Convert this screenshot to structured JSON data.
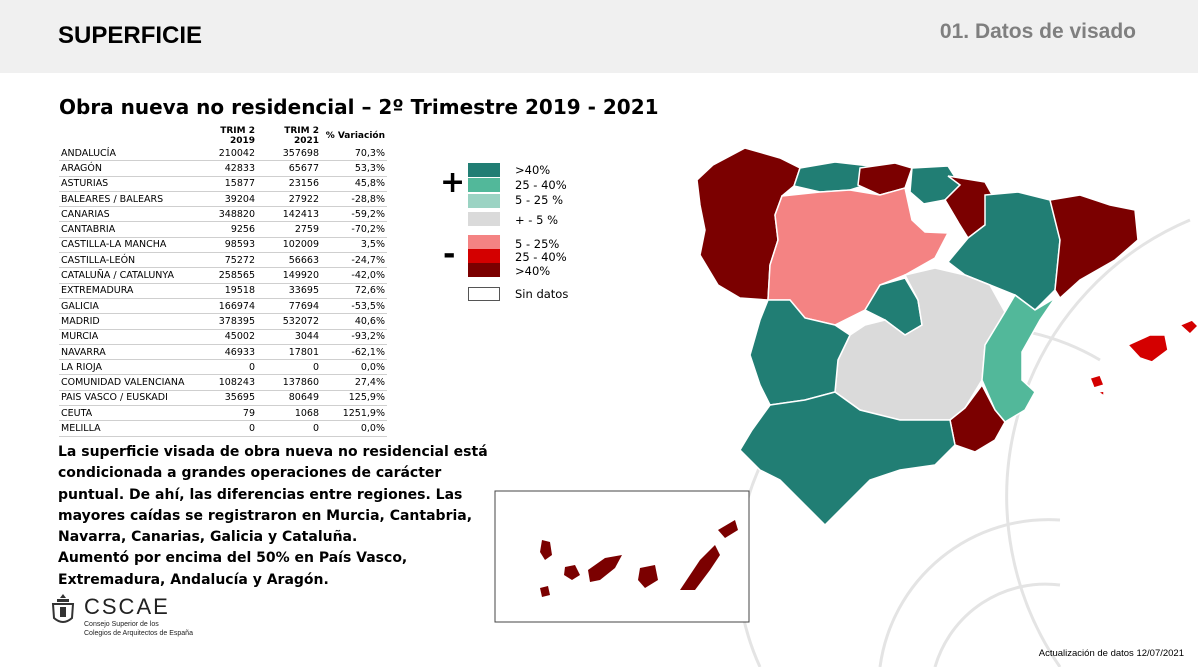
{
  "header": {
    "title": "SUPERFICIE",
    "section": "01. Datos de visado"
  },
  "chart_title": "Obra nueva no residencial – 2º Trimestre 2019 - 2021",
  "table": {
    "headers": [
      "",
      "TRIM 2 2019",
      "TRIM 2 2021",
      "% Variación"
    ],
    "rows": [
      [
        "ANDALUCÍA",
        "210042",
        "357698",
        "70,3%"
      ],
      [
        "ARAGÓN",
        "42833",
        "65677",
        "53,3%"
      ],
      [
        "ASTURIAS",
        "15877",
        "23156",
        "45,8%"
      ],
      [
        "BALEARES / BALEARS",
        "39204",
        "27922",
        "-28,8%"
      ],
      [
        "CANARIAS",
        "348820",
        "142413",
        "-59,2%"
      ],
      [
        "CANTABRIA",
        "9256",
        "2759",
        "-70,2%"
      ],
      [
        "CASTILLA-LA MANCHA",
        "98593",
        "102009",
        "3,5%"
      ],
      [
        "CASTILLA-LEÓN",
        "75272",
        "56663",
        "-24,7%"
      ],
      [
        "CATALUÑA / CATALUNYA",
        "258565",
        "149920",
        "-42,0%"
      ],
      [
        "EXTREMADURA",
        "19518",
        "33695",
        "72,6%"
      ],
      [
        "GALICIA",
        "166974",
        "77694",
        "-53,5%"
      ],
      [
        "MADRID",
        "378395",
        "532072",
        "40,6%"
      ],
      [
        "MURCIA",
        "45002",
        "3044",
        "-93,2%"
      ],
      [
        "NAVARRA",
        "46933",
        "17801",
        "-62,1%"
      ],
      [
        "LA RIOJA",
        "0",
        "0",
        "0,0%"
      ],
      [
        "COMUNIDAD VALENCIANA",
        "108243",
        "137860",
        "27,4%"
      ],
      [
        "PAIS VASCO / EUSKADI",
        "35695",
        "80649",
        "125,9%"
      ],
      [
        "CEUTA",
        "79",
        "1068",
        "1251,9%"
      ],
      [
        "MELILLA",
        "0",
        "0",
        "0,0%"
      ]
    ]
  },
  "body_lines": [
    "La superficie visada de obra nueva no residencial está",
    "condicionada a grandes operaciones de carácter",
    "puntual. De ahí, las diferencias entre regiones. Las",
    "mayores caídas se registraron en Murcia, Cantabria,",
    "Navarra, Canarias, Galicia y Cataluña.",
    "Aumentó por encima del 50% en País Vasco,",
    "Extremadura, Andalucía y Aragón."
  ],
  "legend": {
    "plus_sign": "+",
    "minus_sign": "-",
    "items": [
      {
        "label": ">40%",
        "color": "#217e74"
      },
      {
        "label": "25 - 40%",
        "color": "#52b89a"
      },
      {
        "label": "5 - 25 %",
        "color": "#9bd3c3"
      },
      {
        "label": "+ - 5 %",
        "color": "#dadada"
      },
      {
        "label": "5 - 25%",
        "color": "#f48383"
      },
      {
        "label": "25 - 40%",
        "color": "#d40000"
      },
      {
        "label": ">40%",
        "color": "#7b0000"
      },
      {
        "label": "Sin datos",
        "color": "#ffffff"
      }
    ]
  },
  "colors": {
    "dark_teal": "#217e74",
    "mid_teal": "#52b89a",
    "light_teal": "#9bd3c3",
    "grey": "#dadada",
    "pink": "#f48383",
    "red": "#d40000",
    "dark_red": "#7b0000"
  },
  "logo": {
    "name": "CSCAE",
    "subtitle_line1": "Consejo Superior de los",
    "subtitle_line2": "Colegios de Arquitectos de España"
  },
  "footer": {
    "update": "Actualización de datos 12/07/2021"
  }
}
